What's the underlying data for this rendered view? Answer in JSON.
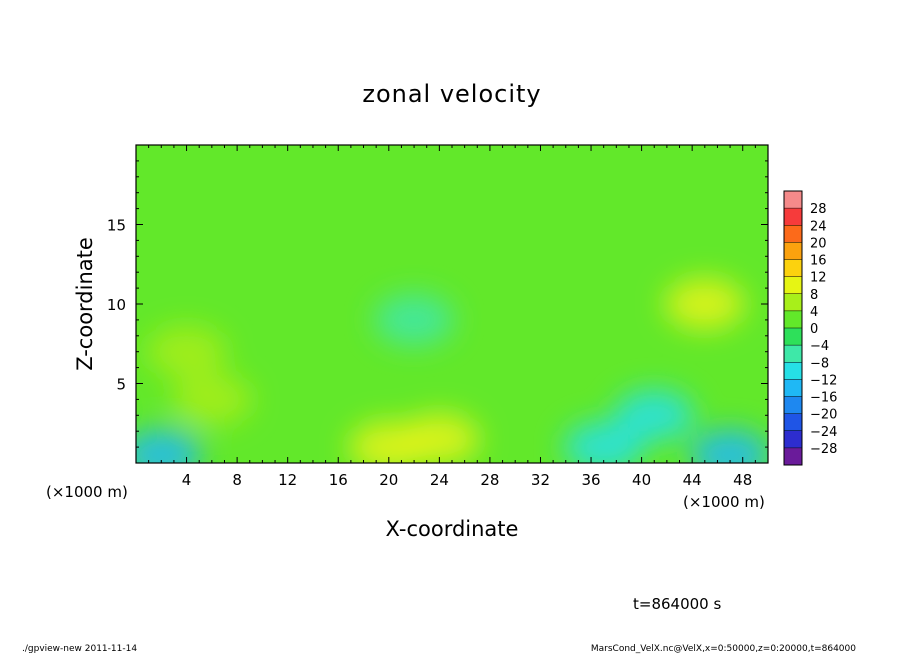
{
  "chart_data": {
    "type": "heatmap",
    "title": "zonal velocity",
    "xlabel": "X-coordinate",
    "ylabel": "Z-coordinate",
    "x_unit_label": "(×1000 m)",
    "x_unit_label_right": "(×1000 m)",
    "xlim": [
      0,
      50
    ],
    "ylim": [
      0,
      20
    ],
    "x_ticks": [
      4,
      8,
      12,
      16,
      20,
      24,
      28,
      32,
      36,
      40,
      44,
      48
    ],
    "x_tick_labels": [
      "4",
      "8",
      "12",
      "16",
      "20",
      "24",
      "28",
      "32",
      "36",
      "40",
      "44",
      "48"
    ],
    "y_ticks": [
      5,
      10,
      15
    ],
    "y_tick_labels": [
      "5",
      "10",
      "15"
    ],
    "colorbar": {
      "levels": [
        -32,
        -28,
        -24,
        -20,
        -16,
        -12,
        -8,
        -4,
        0,
        4,
        8,
        12,
        16,
        20,
        24,
        28,
        32
      ],
      "labels": [
        "28",
        "24",
        "20",
        "16",
        "12",
        "8",
        "4",
        "0",
        "−4",
        "−8",
        "−12",
        "−16",
        "−20",
        "−24",
        "−28"
      ],
      "colors": [
        "#6a1b9a",
        "#2d2dcf",
        "#1f55e6",
        "#1e88f0",
        "#1fb8f5",
        "#26e0e6",
        "#3ee8a8",
        "#2ee05a",
        "#62e82a",
        "#a8ef1a",
        "#e6f514",
        "#fcd20e",
        "#fca20e",
        "#fc6a1a",
        "#f63b3b",
        "#f58a8a"
      ]
    },
    "field_regions": [
      {
        "x": 4,
        "z": 7,
        "value": 6
      },
      {
        "x": 6,
        "z": 4,
        "value": 6
      },
      {
        "x": 22,
        "z": 9,
        "value": -8
      },
      {
        "x": 20,
        "z": 1,
        "value": 8
      },
      {
        "x": 24,
        "z": 1.5,
        "value": 8
      },
      {
        "x": 45,
        "z": 10,
        "value": 9
      },
      {
        "x": 41,
        "z": 3,
        "value": -9
      },
      {
        "x": 2,
        "z": 0.5,
        "value": -13
      },
      {
        "x": 47,
        "z": 0.5,
        "value": -14
      },
      {
        "x": 37,
        "z": 1,
        "value": -10
      }
    ],
    "background_value": 1,
    "annotation": "t=864000 s"
  },
  "footer": {
    "left": "./gpview-new  2011-11-14",
    "right": "MarsCond_VelX.nc@VelX,x=0:50000,z=0:20000,t=864000"
  }
}
